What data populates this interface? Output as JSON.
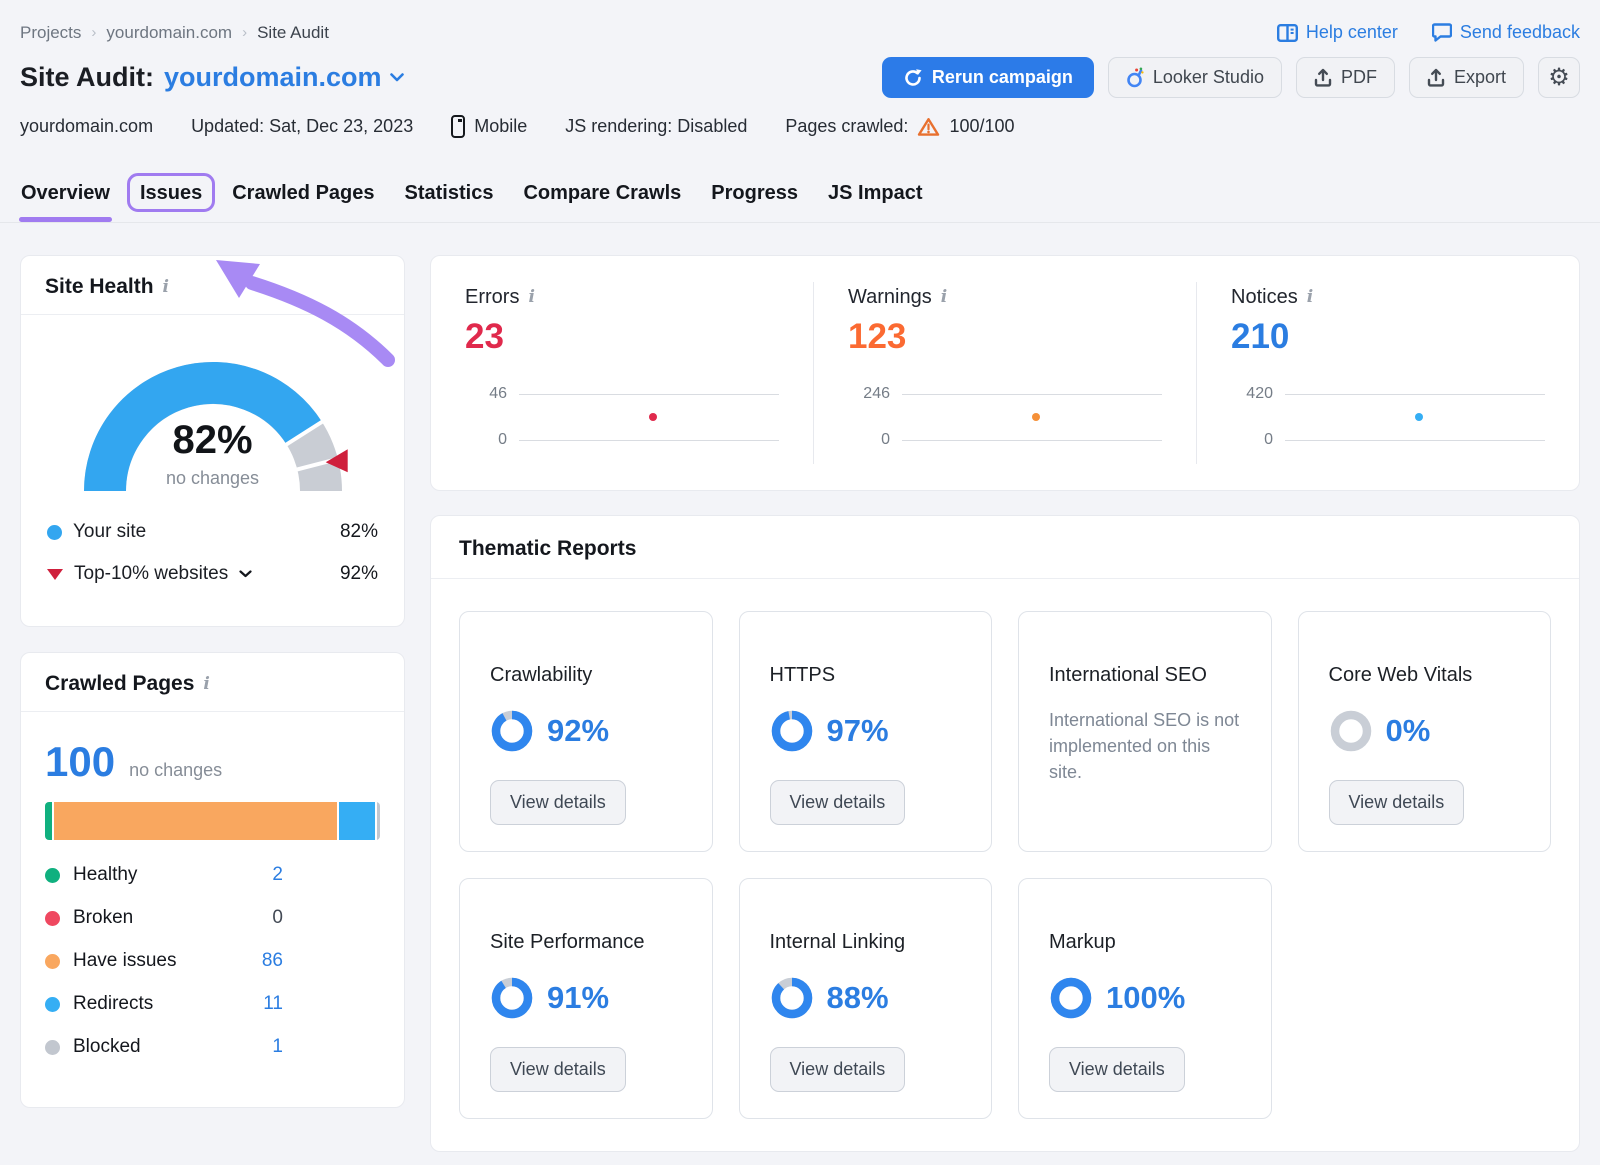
{
  "colors": {
    "accent_blue": "#2b7de1",
    "primary_button": "#2c7be8",
    "purple_annotation": "#a07bf0",
    "sky_blue": "#33a6f0",
    "green": "#10b07f",
    "orange": "#f9a75f",
    "red": "#e0294c",
    "warn_orange": "#fb6a32",
    "benchmark_red": "#cf1f3c",
    "gray_segment": "#c9cdd4"
  },
  "icons": {
    "info": "i",
    "breadcrumb_separator": "›",
    "gear": "⚙"
  },
  "breadcrumb": {
    "items": [
      "Projects",
      "yourdomain.com",
      "Site Audit"
    ]
  },
  "top_links": {
    "help_center": "Help center",
    "send_feedback": "Send feedback"
  },
  "header": {
    "title_prefix": "Site Audit:",
    "title_domain": "yourdomain.com",
    "rerun_label": "Rerun campaign",
    "looker_label": "Looker Studio",
    "pdf_label": "PDF",
    "export_label": "Export"
  },
  "meta": {
    "domain": "yourdomain.com",
    "updated": "Updated: Sat, Dec 23, 2023",
    "device": "Mobile",
    "js_rendering": "JS rendering: Disabled",
    "pages_crawled_label": "Pages crawled:",
    "pages_crawled_value": "100/100"
  },
  "tabs": {
    "items": [
      "Overview",
      "Issues",
      "Crawled Pages",
      "Statistics",
      "Compare Crawls",
      "Progress",
      "JS Impact"
    ],
    "active": "Overview",
    "highlighted": "Issues"
  },
  "site_health": {
    "title": "Site Health",
    "percent": 82,
    "change_label": "no changes",
    "benchmark_percent": 92,
    "legend": [
      {
        "marker": "dot",
        "color": "#33a6f0",
        "label": "Your site",
        "value": "82%",
        "has_chevron": false
      },
      {
        "marker": "triangle",
        "color": "#cf1f3c",
        "label": "Top-10% websites",
        "value": "92%",
        "has_chevron": true
      }
    ]
  },
  "crawled_pages": {
    "title": "Crawled Pages",
    "total": "100",
    "change_label": "no changes",
    "segments": [
      {
        "label": "Healthy",
        "value": 2,
        "display": "2",
        "color": "#10b07f",
        "value_color": "#2b7de1"
      },
      {
        "label": "Broken",
        "value": 0,
        "display": "0",
        "color": "#ef4860",
        "value_color": "#434a55"
      },
      {
        "label": "Have issues",
        "value": 86,
        "display": "86",
        "color": "#f9a75f",
        "value_color": "#2b7de1"
      },
      {
        "label": "Redirects",
        "value": 11,
        "display": "11",
        "color": "#35aef4",
        "value_color": "#2b7de1"
      },
      {
        "label": "Blocked",
        "value": 1,
        "display": "1",
        "color": "#c2c7cf",
        "value_color": "#2b7de1"
      }
    ]
  },
  "issues_summary": [
    {
      "label": "Errors",
      "value": "23",
      "value_color": "#e0294c",
      "dot_color": "#e0294c",
      "axis_max": "46",
      "axis_min": "0",
      "dot_frac_x": 0.5,
      "dot_frac_y": 0.5
    },
    {
      "label": "Warnings",
      "value": "123",
      "value_color": "#fb6a32",
      "dot_color": "#f59038",
      "axis_max": "246",
      "axis_min": "0",
      "dot_frac_x": 0.5,
      "dot_frac_y": 0.5
    },
    {
      "label": "Notices",
      "value": "210",
      "value_color": "#2b7de1",
      "dot_color": "#35aef4",
      "axis_max": "420",
      "axis_min": "0",
      "dot_frac_x": 0.5,
      "dot_frac_y": 0.5
    }
  ],
  "thematic": {
    "title": "Thematic Reports",
    "button_label": "View details",
    "donut_blue": "#2f86ee",
    "donut_gray": "#c9ced6",
    "reports": [
      {
        "title": "Crawlability",
        "percent": 92,
        "display": "92%",
        "has_button": true
      },
      {
        "title": "HTTPS",
        "percent": 97,
        "display": "97%",
        "has_button": true
      },
      {
        "title": "International SEO",
        "percent": null,
        "description": "International SEO is not implemented on this site.",
        "has_button": false
      },
      {
        "title": "Core Web Vitals",
        "percent": 0,
        "display": "0%",
        "has_button": true
      },
      {
        "title": "Site Performance",
        "percent": 91,
        "display": "91%",
        "has_button": true
      },
      {
        "title": "Internal Linking",
        "percent": 88,
        "display": "88%",
        "has_button": true
      },
      {
        "title": "Markup",
        "percent": 100,
        "display": "100%",
        "has_button": true
      }
    ]
  }
}
